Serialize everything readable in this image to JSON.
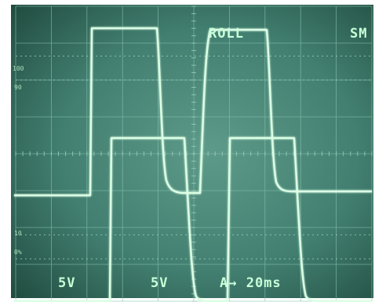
{
  "screen": {
    "background_color": "#3f7d6f",
    "grid_color": "#7fb9a6",
    "trace_color": "#d4ffe0",
    "bezel_color": "#ffffff"
  },
  "readouts": {
    "mode": "ROLL",
    "mode_right": "SM",
    "ch1_scale": "5V",
    "ch2_scale": "5V",
    "timebase": "A→ 20ms"
  },
  "graticule_labels": {
    "top_100": "100",
    "top_90": "90",
    "bottom_10": "10",
    "bottom_0": "0%"
  }
}
